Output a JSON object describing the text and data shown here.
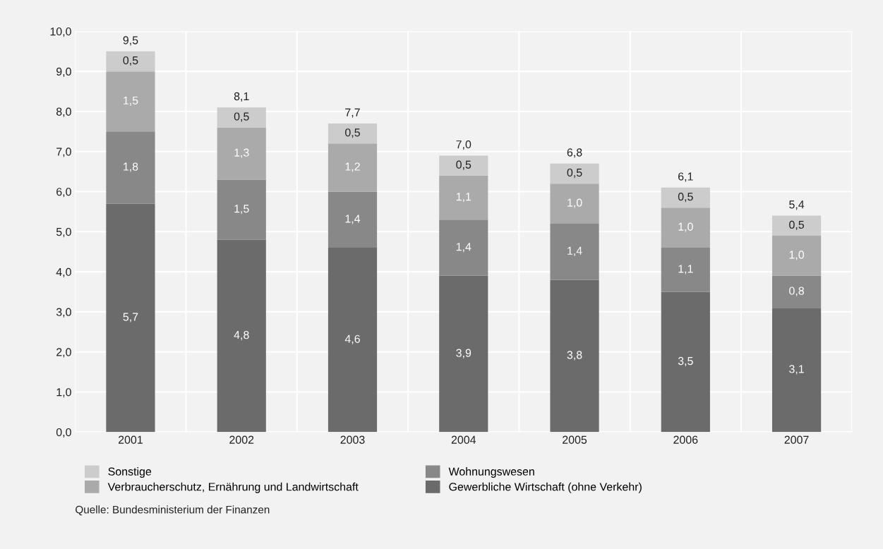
{
  "chart_data": {
    "type": "bar",
    "stacked": true,
    "categories": [
      "2001",
      "2002",
      "2003",
      "2004",
      "2005",
      "2006",
      "2007"
    ],
    "series": [
      {
        "name": "Gewerbliche Wirtschaft (ohne Verkehr)",
        "color": "#6b6b6b",
        "values": [
          5.7,
          4.8,
          4.6,
          3.9,
          3.8,
          3.5,
          3.1
        ],
        "value_labels": [
          "5,7",
          "4,8",
          "4,6",
          "3,9",
          "3,8",
          "3,5",
          "3,1"
        ]
      },
      {
        "name": "Wohnungswesen",
        "color": "#888888",
        "values": [
          1.8,
          1.5,
          1.4,
          1.4,
          1.4,
          1.1,
          0.8
        ],
        "value_labels": [
          "1,8",
          "1,5",
          "1,4",
          "1,4",
          "1,4",
          "1,1",
          "0,8"
        ]
      },
      {
        "name": "Verbraucherschutz, Ernährung und Landwirtschaft",
        "color": "#aaaaaa",
        "values": [
          1.5,
          1.3,
          1.2,
          1.1,
          1.0,
          1.0,
          1.0
        ],
        "value_labels": [
          "1,5",
          "1,3",
          "1,2",
          "1,1",
          "1,0",
          "1,0",
          "1,0"
        ]
      },
      {
        "name": "Sonstige",
        "color": "#cccccc",
        "values": [
          0.5,
          0.5,
          0.5,
          0.5,
          0.5,
          0.5,
          0.5
        ],
        "value_labels": [
          "0,5",
          "0,5",
          "0,5",
          "0,5",
          "0,5",
          "0,5",
          "0,5"
        ]
      }
    ],
    "totals": [
      "9,5",
      "8,1",
      "7,7",
      "7,0",
      "6,8",
      "6,1",
      "5,4"
    ],
    "ylim": [
      0,
      10
    ],
    "yticks": [
      {
        "value": 0,
        "label": "0,0"
      },
      {
        "value": 1,
        "label": "1,0"
      },
      {
        "value": 2,
        "label": "2,0"
      },
      {
        "value": 3,
        "label": "3,0"
      },
      {
        "value": 4,
        "label": "4,0"
      },
      {
        "value": 5,
        "label": "5,0"
      },
      {
        "value": 6,
        "label": "6,0"
      },
      {
        "value": 7,
        "label": "7,0"
      },
      {
        "value": 8,
        "label": "8,0"
      },
      {
        "value": 9,
        "label": "9,0"
      },
      {
        "value": 10,
        "label": "10,0"
      }
    ],
    "grid": true,
    "legend": "bottom",
    "annotations": [
      "Quelle: Bundesministerium der Finanzen"
    ]
  }
}
